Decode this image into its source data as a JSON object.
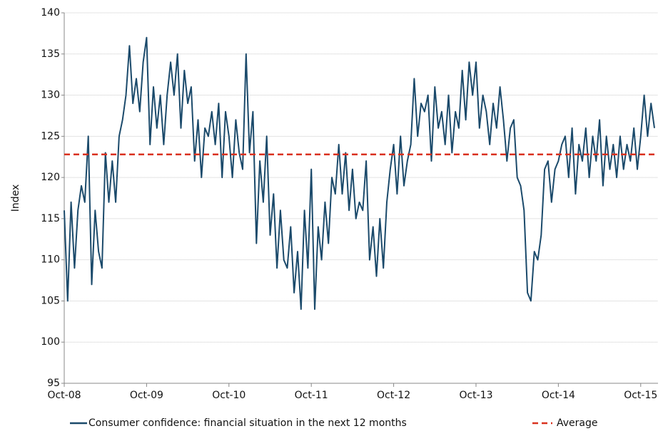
{
  "chart_data": {
    "type": "line",
    "ylabel": "Index",
    "categories": [
      "Oct-08",
      null,
      null,
      null,
      null,
      null,
      null,
      null,
      null,
      null,
      null,
      null,
      null,
      null,
      null,
      null,
      null,
      null,
      null,
      null,
      null,
      null,
      null,
      null,
      "Oct-09",
      null,
      null,
      null,
      null,
      null,
      null,
      null,
      null,
      null,
      null,
      null,
      null,
      null,
      null,
      null,
      null,
      null,
      null,
      null,
      null,
      null,
      null,
      null,
      "Oct-10",
      null,
      null,
      null,
      null,
      null,
      null,
      null,
      null,
      null,
      null,
      null,
      null,
      null,
      null,
      null,
      null,
      null,
      null,
      null,
      null,
      null,
      null,
      null,
      "Oct-11",
      null,
      null,
      null,
      null,
      null,
      null,
      null,
      null,
      null,
      null,
      null,
      null,
      null,
      null,
      null,
      null,
      null,
      null,
      null,
      null,
      null,
      null,
      null,
      "Oct-12",
      null,
      null,
      null,
      null,
      null,
      null,
      null,
      null,
      null,
      null,
      null,
      null,
      null,
      null,
      null,
      null,
      null,
      null,
      null,
      null,
      null,
      null,
      null,
      "Oct-13",
      null,
      null,
      null,
      null,
      null,
      null,
      null,
      null,
      null,
      null,
      null,
      null,
      null,
      null,
      null,
      null,
      null,
      null,
      null,
      null,
      null,
      null,
      null,
      "Oct-14",
      null,
      null,
      null,
      null,
      null,
      null,
      null,
      null,
      null,
      null,
      null,
      null,
      null,
      null,
      null,
      null,
      null,
      null,
      null,
      null,
      null,
      null,
      null,
      "Oct-15",
      null,
      null,
      null,
      null
    ],
    "series": [
      {
        "name": "Consumer confidence: financial situation in the next 12 months",
        "color": "#1b4a6b",
        "values": [
          116,
          105,
          117,
          109,
          116,
          119,
          117,
          125,
          107,
          116,
          111,
          109,
          123,
          117,
          122,
          117,
          125,
          127,
          130,
          136,
          129,
          132,
          128,
          134,
          137,
          124,
          131,
          126,
          130,
          124,
          130,
          134,
          130,
          135,
          126,
          133,
          129,
          131,
          122,
          127,
          120,
          126,
          125,
          128,
          124,
          129,
          120,
          128,
          125,
          120,
          127,
          123,
          121,
          135,
          123,
          128,
          112,
          122,
          117,
          125,
          113,
          118,
          109,
          116,
          110,
          109,
          114,
          106,
          111,
          104,
          116,
          109,
          121,
          104,
          114,
          110,
          117,
          112,
          120,
          118,
          124,
          118,
          123,
          116,
          121,
          115,
          117,
          116,
          122,
          110,
          114,
          108,
          115,
          109,
          117,
          121,
          124,
          118,
          125,
          119,
          122,
          124,
          132,
          125,
          129,
          128,
          130,
          122,
          131,
          126,
          128,
          124,
          130,
          123,
          128,
          126,
          133,
          127,
          134,
          130,
          134,
          126,
          130,
          128,
          124,
          129,
          126,
          131,
          127,
          122,
          126,
          127,
          120,
          119,
          116,
          106,
          105,
          111,
          110,
          113,
          121,
          122,
          117,
          121,
          122,
          124,
          125,
          120,
          126,
          118,
          124,
          122,
          126,
          120,
          125,
          122,
          127,
          119,
          125,
          121,
          124,
          120,
          125,
          121,
          124,
          122,
          126,
          121,
          125,
          130,
          125,
          129,
          126
        ]
      },
      {
        "name": "Average",
        "color": "#d9321f",
        "dashed": true,
        "value": 122.8
      }
    ],
    "ylim": [
      95,
      140
    ],
    "yticks": [
      95,
      100,
      105,
      110,
      115,
      120,
      125,
      130,
      135,
      140
    ],
    "grid": true
  }
}
